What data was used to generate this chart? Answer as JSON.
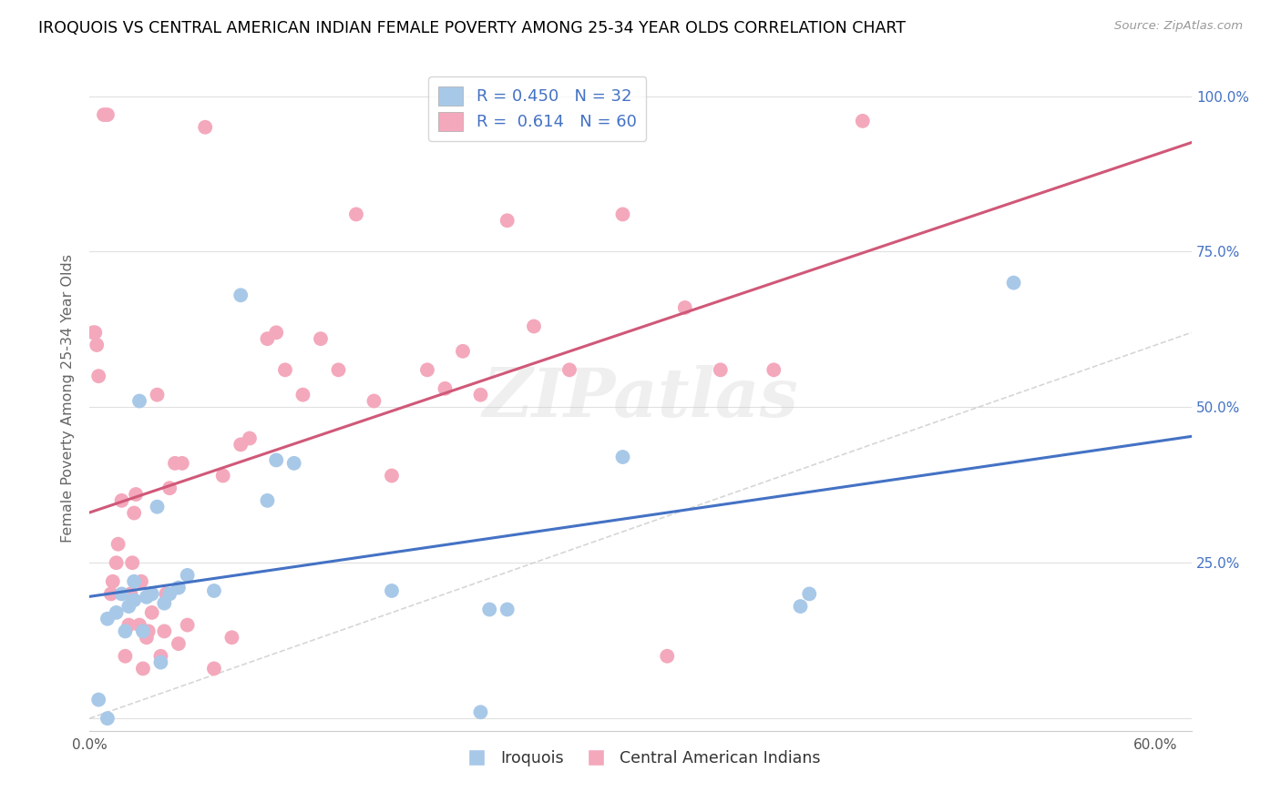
{
  "title": "IROQUOIS VS CENTRAL AMERICAN INDIAN FEMALE POVERTY AMONG 25-34 YEAR OLDS CORRELATION CHART",
  "source": "Source: ZipAtlas.com",
  "ylabel": "Female Poverty Among 25-34 Year Olds",
  "xlim": [
    0.0,
    0.62
  ],
  "ylim": [
    -0.02,
    1.05
  ],
  "xticks": [
    0.0,
    0.1,
    0.2,
    0.3,
    0.4,
    0.5,
    0.6
  ],
  "xtick_labels": [
    "0.0%",
    "",
    "",
    "",
    "",
    "",
    "60.0%"
  ],
  "yticks": [
    0.0,
    0.25,
    0.5,
    0.75,
    1.0
  ],
  "ytick_labels": [
    "",
    "25.0%",
    "50.0%",
    "75.0%",
    "100.0%"
  ],
  "iroquois_color": "#A8C8E8",
  "central_color": "#F4A8BC",
  "iroquois_r": 0.45,
  "iroquois_n": 32,
  "central_r": 0.614,
  "central_n": 60,
  "diagonal_color": "#CCCCCC",
  "iroquois_line_color": "#4472C4",
  "central_line_color": "#D05878",
  "watermark": "ZIPatlas",
  "legend_items": [
    "Iroquois",
    "Central American Indians"
  ],
  "iroquois_x": [
    0.005,
    0.01,
    0.01,
    0.015,
    0.018,
    0.02,
    0.022,
    0.025,
    0.025,
    0.028,
    0.03,
    0.032,
    0.035,
    0.038,
    0.04,
    0.042,
    0.045,
    0.05,
    0.055,
    0.07,
    0.085,
    0.1,
    0.105,
    0.115,
    0.17,
    0.22,
    0.225,
    0.235,
    0.3,
    0.4,
    0.405,
    0.52
  ],
  "iroquois_y": [
    0.03,
    0.0,
    0.16,
    0.17,
    0.2,
    0.14,
    0.18,
    0.19,
    0.22,
    0.51,
    0.14,
    0.195,
    0.2,
    0.34,
    0.09,
    0.185,
    0.2,
    0.21,
    0.23,
    0.205,
    0.68,
    0.35,
    0.415,
    0.41,
    0.205,
    0.01,
    0.175,
    0.175,
    0.42,
    0.18,
    0.2,
    0.7
  ],
  "central_x": [
    0.002,
    0.003,
    0.004,
    0.005,
    0.008,
    0.01,
    0.012,
    0.013,
    0.015,
    0.016,
    0.018,
    0.02,
    0.022,
    0.023,
    0.024,
    0.025,
    0.026,
    0.028,
    0.029,
    0.03,
    0.032,
    0.033,
    0.035,
    0.038,
    0.04,
    0.042,
    0.043,
    0.045,
    0.048,
    0.05,
    0.052,
    0.055,
    0.065,
    0.07,
    0.075,
    0.08,
    0.085,
    0.09,
    0.1,
    0.105,
    0.11,
    0.12,
    0.13,
    0.14,
    0.15,
    0.16,
    0.17,
    0.19,
    0.2,
    0.21,
    0.22,
    0.235,
    0.25,
    0.27,
    0.3,
    0.325,
    0.335,
    0.355,
    0.385,
    0.435
  ],
  "central_y": [
    0.62,
    0.62,
    0.6,
    0.55,
    0.97,
    0.97,
    0.2,
    0.22,
    0.25,
    0.28,
    0.35,
    0.1,
    0.15,
    0.2,
    0.25,
    0.33,
    0.36,
    0.15,
    0.22,
    0.08,
    0.13,
    0.14,
    0.17,
    0.52,
    0.1,
    0.14,
    0.2,
    0.37,
    0.41,
    0.12,
    0.41,
    0.15,
    0.95,
    0.08,
    0.39,
    0.13,
    0.44,
    0.45,
    0.61,
    0.62,
    0.56,
    0.52,
    0.61,
    0.56,
    0.81,
    0.51,
    0.39,
    0.56,
    0.53,
    0.59,
    0.52,
    0.8,
    0.63,
    0.56,
    0.81,
    0.1,
    0.66,
    0.56,
    0.56,
    0.96
  ]
}
